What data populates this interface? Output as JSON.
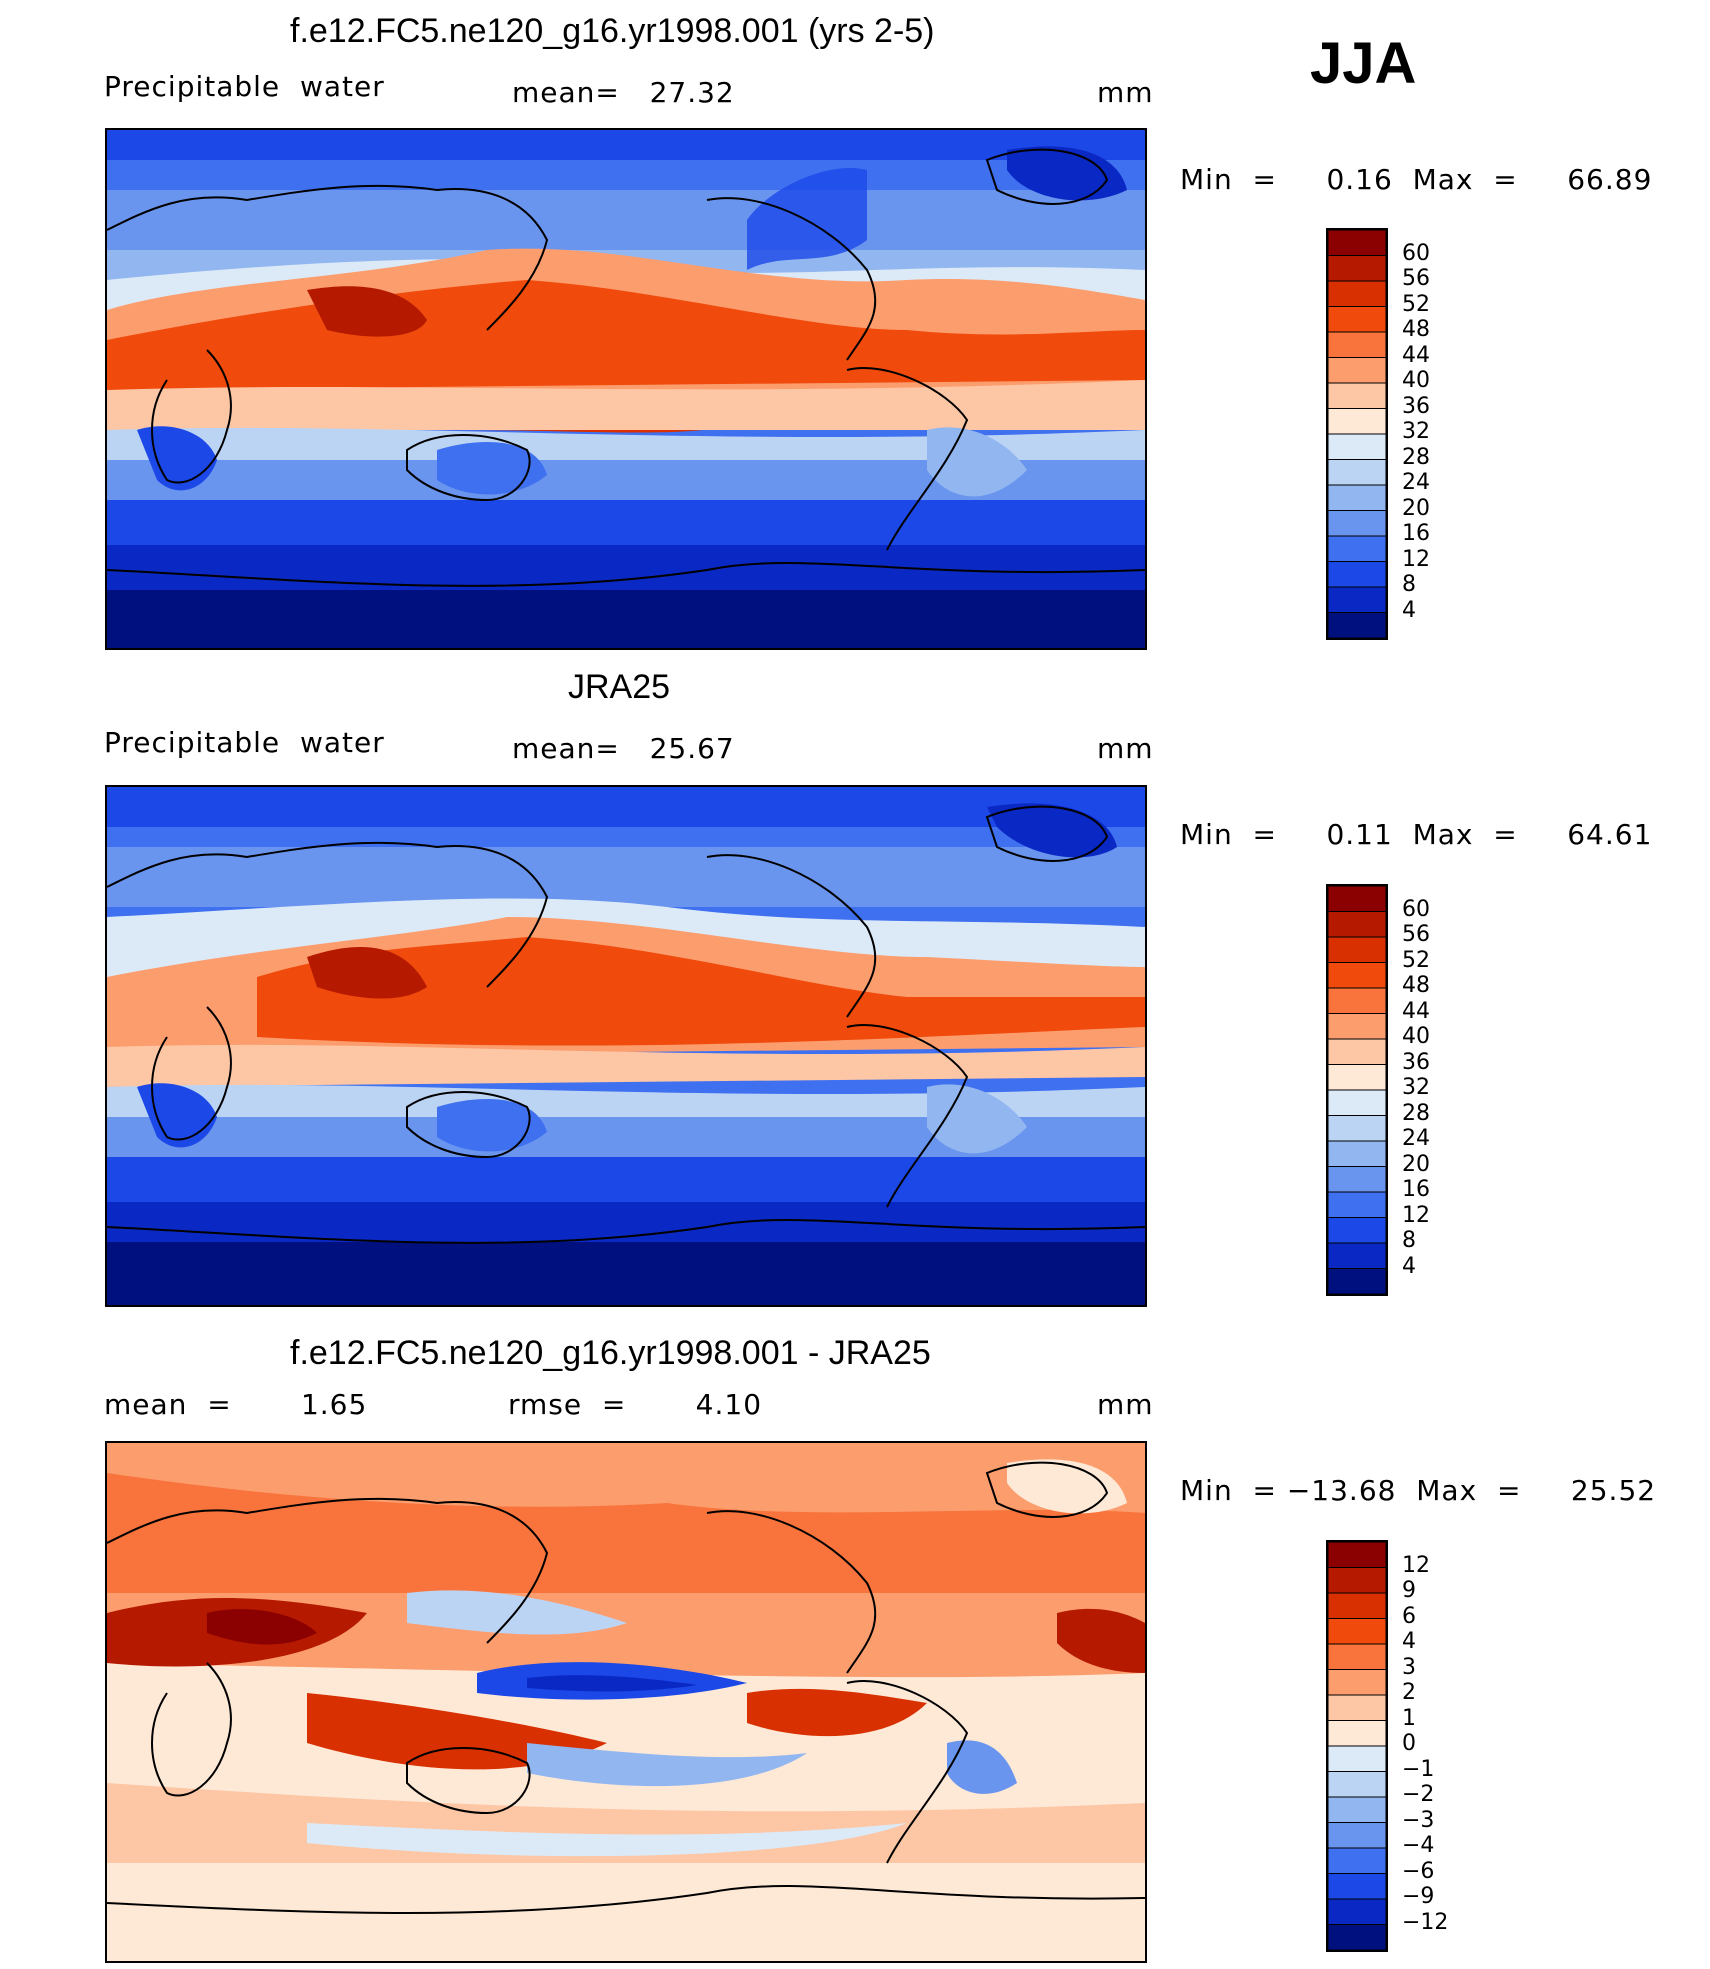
{
  "season": "JJA",
  "panels": [
    {
      "title": "f.e12.FC5.ne120_g16.yr1998.001 (yrs 2-5)",
      "left_label": "Precipitable  water",
      "center_label": "mean=   27.32",
      "units": "mm",
      "minmax": "Min  =     0.16  Max  =     66.89",
      "colorbar_labels": [
        "60",
        "56",
        "52",
        "48",
        "44",
        "40",
        "36",
        "32",
        "28",
        "24",
        "20",
        "16",
        "12",
        "8",
        "4"
      ]
    },
    {
      "title": "JRA25",
      "left_label": "Precipitable  water",
      "center_label": "mean=   25.67",
      "units": "mm",
      "minmax": "Min  =     0.11  Max  =     64.61",
      "colorbar_labels": [
        "60",
        "56",
        "52",
        "48",
        "44",
        "40",
        "36",
        "32",
        "28",
        "24",
        "20",
        "16",
        "12",
        "8",
        "4"
      ]
    },
    {
      "title": "f.e12.FC5.ne120_g16.yr1998.001 - JRA25",
      "left_label": "mean  =       1.65",
      "center_label": "rmse  =       4.10",
      "units": "mm",
      "minmax": "Min  = −13.68  Max  =     25.52",
      "colorbar_labels": [
        "12",
        "9",
        "6",
        "4",
        "3",
        "2",
        "1",
        "0",
        "−1",
        "−2",
        "−3",
        "−4",
        "−6",
        "−9",
        "−12"
      ]
    }
  ],
  "colors": {
    "sequential": [
      "#8b0000",
      "#b51a00",
      "#d83000",
      "#f04a0c",
      "#f8743c",
      "#fc9d6e",
      "#fdc6a4",
      "#fee8d6",
      "#dceaf8",
      "#bcd4f4",
      "#92b6f0",
      "#6a95ee",
      "#3f70f0",
      "#1c48e8",
      "#0a28c4",
      "#00107e"
    ],
    "diverging": [
      "#8b0000",
      "#b51a00",
      "#d83000",
      "#f04a0c",
      "#f8743c",
      "#fc9d6e",
      "#fdc6a4",
      "#fee8d6",
      "#dceaf8",
      "#bcd4f4",
      "#92b6f0",
      "#6a95ee",
      "#3f70f0",
      "#1c48e8",
      "#0a28c4",
      "#00107e"
    ]
  },
  "chart_data": [
    {
      "type": "heatmap",
      "title": "f.e12.FC5.ne120_g16.yr1998.001 (yrs 2-5)",
      "variable": "Precipitable  water",
      "units": "mm",
      "mean": 27.32,
      "min": 0.16,
      "max": 66.89,
      "contour_levels": [
        4,
        8,
        12,
        16,
        20,
        24,
        28,
        32,
        36,
        40,
        44,
        48,
        52,
        56,
        60
      ]
    },
    {
      "type": "heatmap",
      "title": "JRA25",
      "variable": "Precipitable  water",
      "units": "mm",
      "mean": 25.67,
      "min": 0.11,
      "max": 64.61,
      "contour_levels": [
        4,
        8,
        12,
        16,
        20,
        24,
        28,
        32,
        36,
        40,
        44,
        48,
        52,
        56,
        60
      ]
    },
    {
      "type": "heatmap",
      "title": "f.e12.FC5.ne120_g16.yr1998.001 - JRA25",
      "units": "mm",
      "mean": 1.65,
      "rmse": 4.1,
      "min": -13.68,
      "max": 25.52,
      "contour_levels": [
        -12,
        -9,
        -6,
        -4,
        -3,
        -2,
        -1,
        0,
        1,
        2,
        3,
        4,
        6,
        9,
        12
      ]
    }
  ]
}
